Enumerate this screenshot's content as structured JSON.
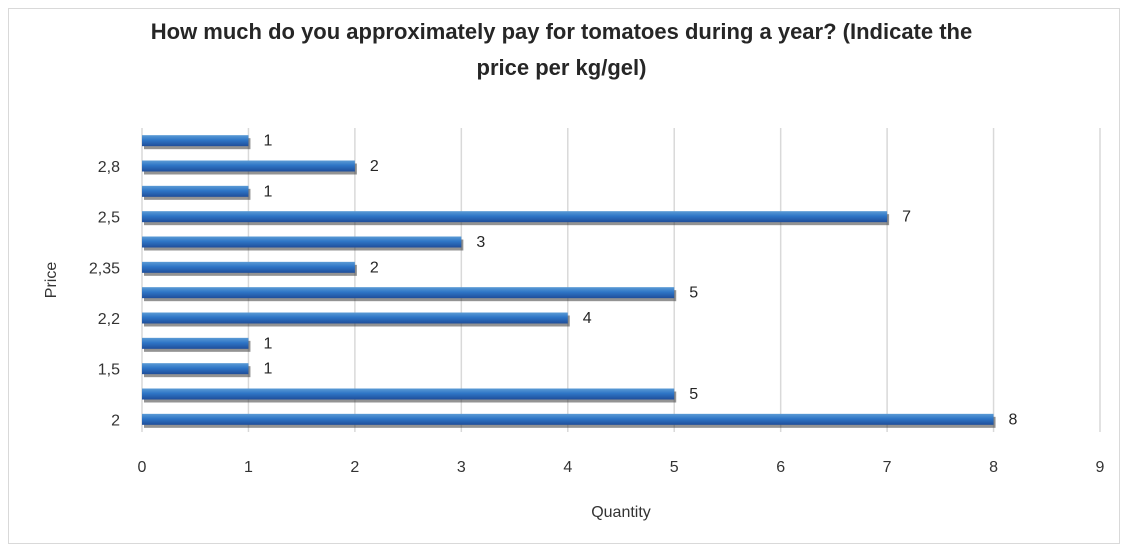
{
  "chart_data": {
    "type": "bar",
    "orientation": "horizontal",
    "title": "How much do you approximately pay for tomatoes during a year? (Indicate the\nprice per kg/gel)",
    "xlabel": "Quantity",
    "ylabel": "Price",
    "xlim": [
      0,
      9
    ],
    "xticks": [
      "0",
      "1",
      "2",
      "3",
      "4",
      "5",
      "6",
      "7",
      "8",
      "9"
    ],
    "categories": [
      "2",
      "",
      "1,5",
      "",
      "2,2",
      "",
      "2,35",
      "",
      "2,5",
      "",
      "2,8",
      ""
    ],
    "values": [
      8,
      5,
      1,
      1,
      4,
      5,
      2,
      3,
      7,
      1,
      2,
      1
    ],
    "grid": true,
    "legend": "none",
    "bar_color": "#2e75c6"
  }
}
